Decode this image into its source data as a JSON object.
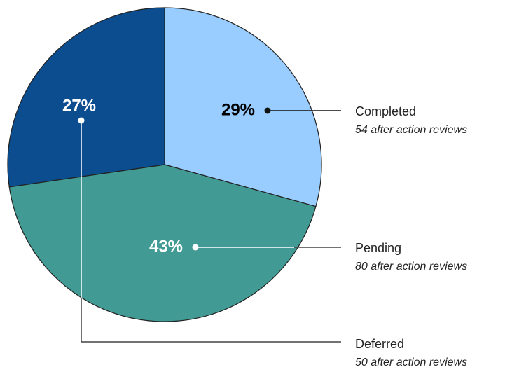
{
  "chart_data": {
    "type": "pie",
    "categories": [
      "Completed",
      "Pending",
      "Deferred"
    ],
    "values": [
      29,
      43,
      27
    ],
    "value_labels": [
      "29%",
      "43%",
      "27%"
    ],
    "details": [
      "54 after action reviews",
      "80 after action reviews",
      "50 after action reviews"
    ],
    "colors": [
      "#99ccff",
      "#419a94",
      "#0b4d8e"
    ],
    "label_colors": [
      "#000000",
      "#ffffff",
      "#ffffff"
    ]
  }
}
